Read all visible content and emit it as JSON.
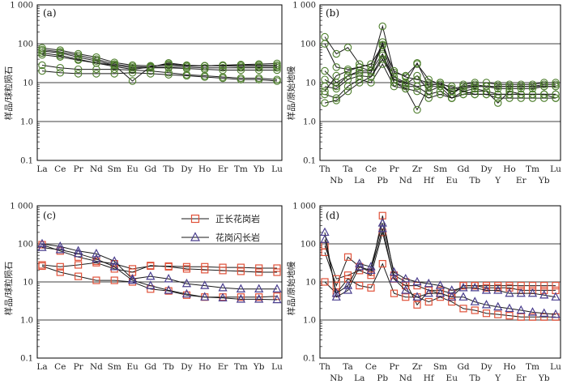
{
  "colors": {
    "circle": "#4f7f2e",
    "square": "#e0523a",
    "triangle": "#4a3e8e",
    "line": "#1a1a1a"
  },
  "legend": [
    {
      "label": "正长花岗岩",
      "marker": "square"
    },
    {
      "label": "花岗闪长岩",
      "marker": "triangle"
    }
  ],
  "chart_data": [
    {
      "panel": "(a)",
      "type": "line",
      "ylabel": "样品/球粒陨石",
      "yscale": "log",
      "ylim": [
        0.1,
        1000
      ],
      "yticks": [
        "0.1",
        "1.0",
        "10",
        "100",
        "1 000"
      ],
      "categories": [
        "La",
        "Ce",
        "Pr",
        "Nd",
        "Sm",
        "Eu",
        "Gd",
        "Tb",
        "Dy",
        "Ho",
        "Er",
        "Tm",
        "Yb",
        "Lu"
      ],
      "marker": "circle",
      "series": [
        {
          "values": [
            78,
            68,
            55,
            45,
            33,
            28,
            27,
            28,
            27,
            27,
            28,
            29,
            30,
            31
          ]
        },
        {
          "values": [
            70,
            62,
            50,
            40,
            30,
            26,
            25,
            25,
            25,
            24,
            24,
            24,
            24,
            24
          ]
        },
        {
          "values": [
            65,
            58,
            45,
            36,
            28,
            24,
            24,
            24,
            23,
            22,
            21,
            21,
            21,
            21
          ]
        },
        {
          "values": [
            58,
            50,
            40,
            32,
            26,
            22,
            25,
            32,
            28,
            27,
            27,
            26,
            26,
            26
          ]
        },
        {
          "values": [
            52,
            46,
            38,
            32,
            28,
            11,
            26,
            30,
            27,
            27,
            28,
            28,
            28,
            28
          ]
        },
        {
          "values": [
            28,
            24,
            22,
            22,
            22,
            21,
            20,
            18,
            16,
            15,
            14,
            13,
            13,
            12
          ]
        },
        {
          "values": [
            20,
            18,
            17,
            17,
            17,
            18,
            17,
            16,
            15,
            14,
            13,
            12,
            12,
            11
          ]
        }
      ]
    },
    {
      "panel": "(b)",
      "type": "line",
      "ylabel": "样品/原始地幔",
      "yscale": "log",
      "ylim": [
        0.1,
        1000
      ],
      "yticks": [
        "0.1",
        "1.0",
        "10",
        "100",
        "1 000"
      ],
      "categories": [
        "Th",
        "Nb",
        "Ta",
        "La",
        "Ce",
        "Pb",
        "Pr",
        "Nd",
        "Zr",
        "Hf",
        "Sm",
        "Eu",
        "Gd",
        "Tb",
        "Dy",
        "Y",
        "Ho",
        "Er",
        "Tm",
        "Yb",
        "Lu"
      ],
      "marker": "circle",
      "series": [
        {
          "values": [
            150,
            55,
            80,
            30,
            25,
            280,
            18,
            15,
            30,
            12,
            9,
            5,
            8,
            9,
            8,
            8,
            8,
            8,
            8,
            9,
            9
          ]
        },
        {
          "values": [
            100,
            25,
            22,
            25,
            20,
            110,
            14,
            10,
            32,
            8,
            10,
            5,
            9,
            10,
            10,
            9,
            9,
            9,
            9,
            10,
            10
          ]
        },
        {
          "values": [
            20,
            10,
            15,
            20,
            20,
            55,
            12,
            9,
            15,
            6,
            8,
            6,
            7,
            8,
            8,
            7,
            7,
            7,
            7,
            8,
            8
          ]
        },
        {
          "values": [
            12,
            8,
            15,
            18,
            18,
            95,
            10,
            7,
            2,
            8,
            8,
            4,
            6,
            7,
            6,
            3,
            6,
            5,
            5,
            5,
            5
          ]
        },
        {
          "values": [
            8,
            7,
            12,
            15,
            14,
            50,
            10,
            8,
            8,
            5,
            6,
            4,
            5,
            6,
            6,
            5,
            5,
            5,
            5,
            5,
            4
          ]
        },
        {
          "values": [
            5,
            4,
            8,
            12,
            10,
            30,
            8,
            7,
            6,
            4,
            5,
            4,
            5,
            5,
            5,
            4,
            4,
            4,
            4,
            4,
            4
          ]
        },
        {
          "values": [
            3,
            3.5,
            6,
            10,
            14,
            40,
            12,
            10,
            8,
            9,
            9,
            8,
            6,
            5,
            5,
            5,
            5,
            5,
            5,
            5,
            5
          ]
        },
        {
          "values": [
            6,
            15,
            20,
            25,
            30,
            90,
            20,
            14,
            12,
            10,
            10,
            7,
            8,
            8,
            8,
            8,
            8,
            8,
            8,
            8,
            8
          ]
        }
      ]
    },
    {
      "panel": "(c)",
      "type": "line",
      "ylabel": "样品/球粒陨石",
      "yscale": "log",
      "ylim": [
        0.1,
        1000
      ],
      "yticks": [
        "0.1",
        "1.0",
        "10",
        "100",
        "1 000"
      ],
      "categories": [
        "La",
        "Ce",
        "Pr",
        "Nd",
        "Sm",
        "Eu",
        "Gd",
        "Tb",
        "Dy",
        "Ho",
        "Er",
        "Tm",
        "Yb",
        "Lu"
      ],
      "series": [
        {
          "marker": "square",
          "values": [
            95,
            65,
            45,
            35,
            30,
            22,
            26,
            26,
            25,
            25,
            24,
            24,
            23,
            23
          ]
        },
        {
          "marker": "square",
          "values": [
            28,
            25,
            28,
            32,
            22,
            18,
            27,
            25,
            22,
            21,
            20,
            19,
            18,
            18
          ]
        },
        {
          "marker": "square",
          "values": [
            26,
            18,
            14,
            11,
            11,
            10,
            6.5,
            5.8,
            4.5,
            4.0,
            4.0,
            4.0,
            4.0,
            4.2
          ]
        },
        {
          "marker": "triangle",
          "values": [
            100,
            85,
            65,
            55,
            35,
            12,
            14,
            12,
            9,
            8,
            7,
            6.5,
            6.5,
            6.5
          ]
        },
        {
          "marker": "triangle",
          "values": [
            80,
            70,
            55,
            40,
            25,
            11,
            8,
            6,
            4.8,
            4.0,
            3.8,
            3.5,
            3.5,
            3.4
          ]
        }
      ]
    },
    {
      "panel": "(d)",
      "type": "line",
      "ylabel": "样品/原始地幔",
      "yscale": "log",
      "ylim": [
        0.1,
        1000
      ],
      "yticks": [
        "0.1",
        "1.0",
        "10",
        "100",
        "1 000"
      ],
      "categories": [
        "Th",
        "Nb",
        "Ta",
        "La",
        "Ce",
        "Pb",
        "Pr",
        "Nd",
        "Zr",
        "Hf",
        "Sm",
        "Eu",
        "Gd",
        "Tb",
        "Dy",
        "Y",
        "Ho",
        "Er",
        "Tm",
        "Yb",
        "Lu"
      ],
      "series": [
        {
          "marker": "square",
          "values": [
            60,
            8,
            45,
            25,
            18,
            550,
            15,
            10,
            2.5,
            6,
            5,
            4,
            8,
            8,
            7,
            7,
            7,
            6,
            6,
            6,
            6
          ]
        },
        {
          "marker": "square",
          "values": [
            90,
            12,
            15,
            20,
            15,
            200,
            12,
            8,
            8,
            6,
            6,
            5,
            8,
            8,
            8,
            8,
            8,
            8,
            8,
            8,
            8
          ]
        },
        {
          "marker": "square",
          "values": [
            10,
            5,
            12,
            8,
            7,
            30,
            5,
            4,
            4,
            3,
            4,
            3,
            2,
            1.8,
            1.5,
            1.4,
            1.3,
            1.2,
            1.2,
            1.2,
            1.2
          ]
        },
        {
          "marker": "triangle",
          "values": [
            130,
            5,
            8,
            30,
            25,
            350,
            18,
            12,
            10,
            9,
            8,
            6,
            7,
            7,
            6,
            6,
            5,
            5,
            5,
            4.5,
            4
          ]
        },
        {
          "marker": "triangle",
          "values": [
            200,
            4,
            6,
            25,
            20,
            250,
            12,
            6,
            4,
            5,
            5,
            4,
            4,
            3,
            2.5,
            2.2,
            2,
            1.8,
            1.6,
            1.5,
            1.4
          ]
        }
      ]
    }
  ]
}
